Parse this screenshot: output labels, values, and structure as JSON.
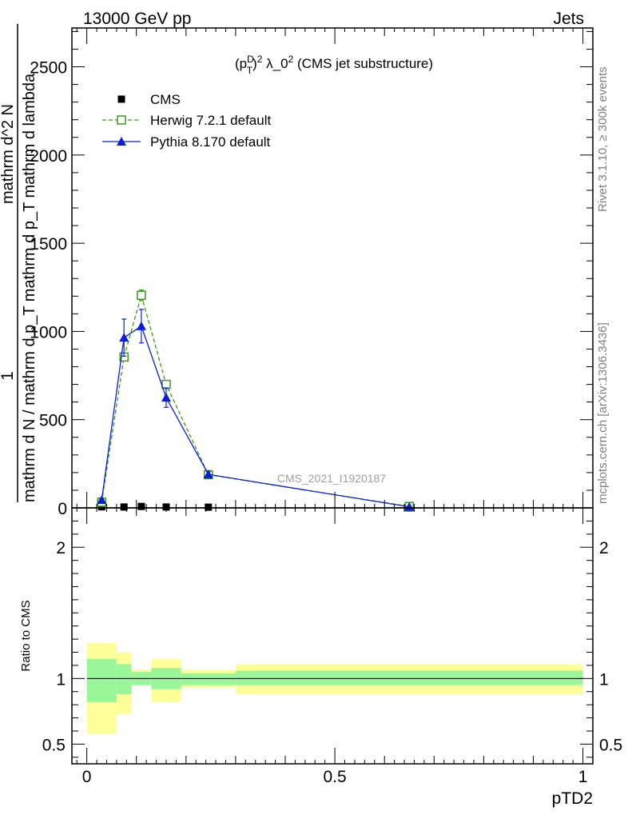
{
  "header": {
    "left": "13000 GeV pp",
    "right": "Jets"
  },
  "side_labels": {
    "rivet": "Rivet 3.1.10, ≥ 300k events",
    "mcplots": "mcplots.cern.ch [arXiv:1306.3436]"
  },
  "reference_label": "CMS_2021_I1920187",
  "chart_data": [
    {
      "type": "line",
      "title": "(p_T^D)^2 λ_0^2 (CMS jet substructure)",
      "ylabel_numerator": "1",
      "ylabel_denominator": "mathrm d N / mathrm d p_T mathrm d p_T mathrm d lambda",
      "ylabel_top": "mathrm d^2 N",
      "ylim": [
        0,
        2720
      ],
      "xlim": [
        -0.03,
        1.02
      ],
      "yticks": [
        0,
        500,
        1000,
        1500,
        2000,
        2500
      ],
      "ytick_labels": [
        "0",
        "500",
        "1000",
        "1500",
        "2000",
        "2500"
      ],
      "legend_position": "top-left",
      "series": [
        {
          "name": "CMS",
          "marker": "square",
          "color": "#000000",
          "x": [
            0.03,
            0.075,
            0.11,
            0.16,
            0.245,
            0.65
          ],
          "y": [
            6,
            5,
            8,
            5,
            4,
            0
          ]
        },
        {
          "name": "Herwig 7.2.1 default",
          "marker": "open-square",
          "linestyle": "dashed",
          "color": "#3a9a1a",
          "x": [
            0.03,
            0.075,
            0.11,
            0.16,
            0.245,
            0.65
          ],
          "y": [
            32,
            855,
            1205,
            700,
            188,
            8
          ],
          "yerr": [
            5,
            20,
            30,
            20,
            8,
            2
          ]
        },
        {
          "name": "Pythia 8.170 default",
          "marker": "triangle",
          "linestyle": "solid",
          "color": "#0a1fd8",
          "x": [
            0.03,
            0.075,
            0.11,
            0.16,
            0.245,
            0.65
          ],
          "y": [
            45,
            965,
            1030,
            625,
            190,
            6
          ],
          "yerr": [
            8,
            105,
            95,
            55,
            15,
            2
          ]
        }
      ]
    },
    {
      "type": "area",
      "ylabel": "Ratio to CMS",
      "xlabel": "pTD2",
      "ylim": [
        0.35,
        2.3
      ],
      "xlim": [
        -0.03,
        1.02
      ],
      "yticks": [
        0.5,
        1,
        2
      ],
      "ytick_labels": [
        "0.5",
        "1",
        "2"
      ],
      "xticks": [
        0,
        0.5,
        1
      ],
      "xtick_labels": [
        "0",
        "0.5",
        "1"
      ],
      "bands": {
        "bins": [
          [
            0.0,
            0.06
          ],
          [
            0.06,
            0.09
          ],
          [
            0.09,
            0.13
          ],
          [
            0.13,
            0.19
          ],
          [
            0.19,
            0.3
          ],
          [
            0.3,
            1.0
          ]
        ],
        "green_low": [
          0.82,
          0.88,
          0.95,
          0.92,
          0.95,
          0.95
        ],
        "green_high": [
          1.15,
          1.11,
          1.05,
          1.08,
          1.04,
          1.06
        ],
        "yellow_low": [
          0.58,
          0.73,
          0.95,
          0.82,
          0.93,
          0.88
        ],
        "yellow_high": [
          1.27,
          1.2,
          1.07,
          1.15,
          1.07,
          1.11
        ],
        "green_color": "#99f799",
        "yellow_color": "#ffff99"
      }
    }
  ]
}
